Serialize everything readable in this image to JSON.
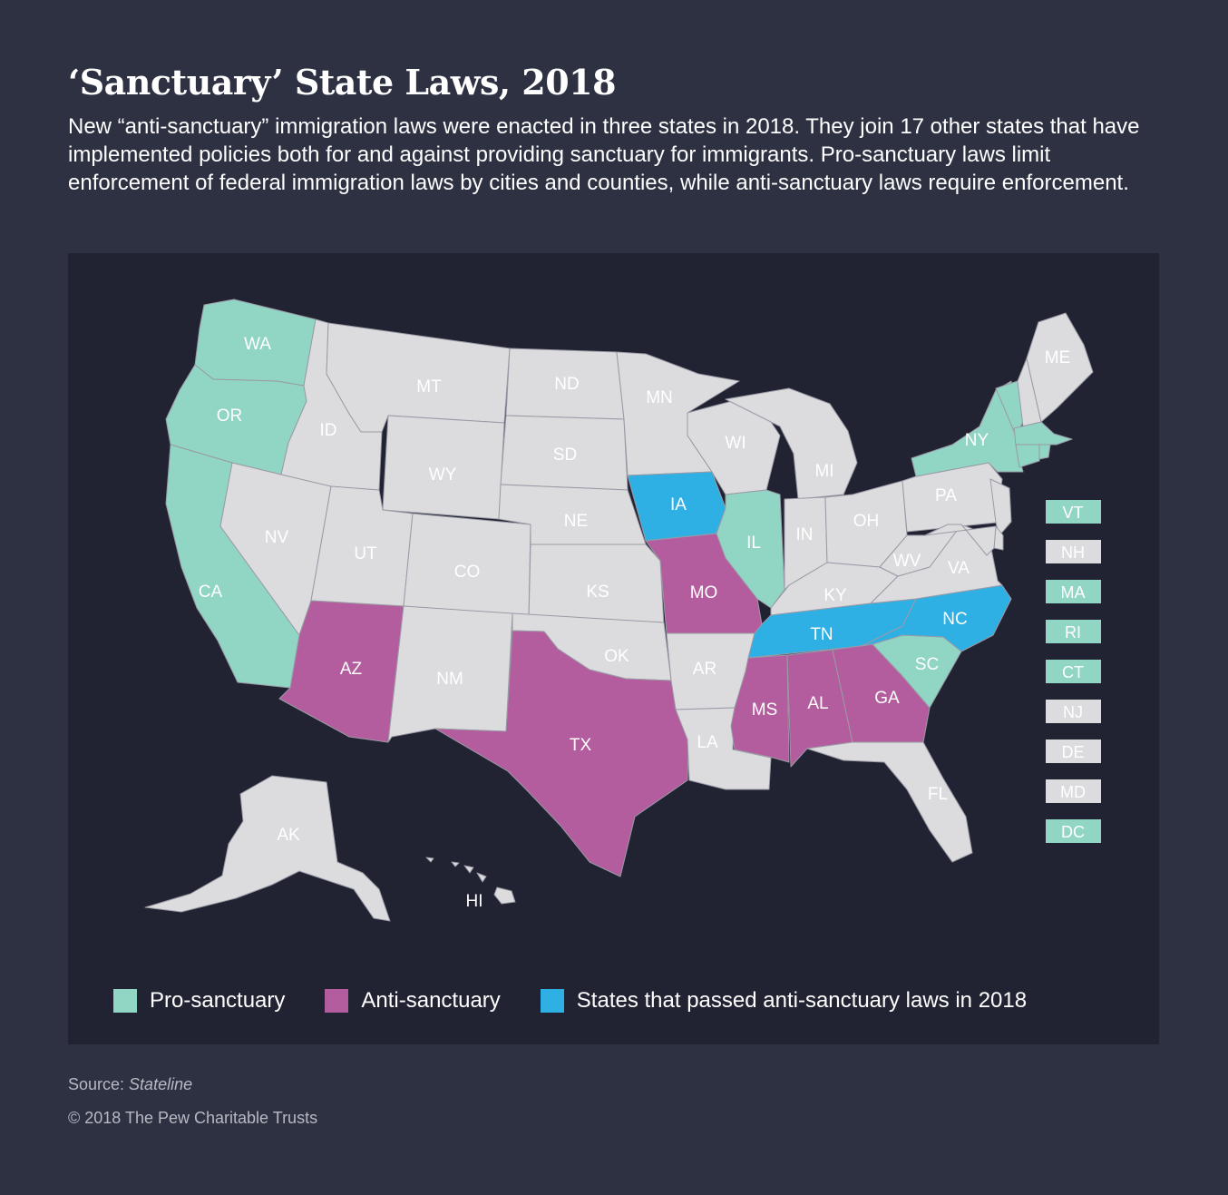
{
  "title": "‘Sanctuary’ State Laws, 2018",
  "subtitle": "New “anti-sanctuary” immigration laws were enacted in three states in 2018. They join 17 other states that have implemented policies both for and against providing sanctuary for immigrants. Pro-sanctuary laws limit enforcement of federal immigration laws by cities and counties, while anti-sanctuary laws require enforcement.",
  "colors": {
    "background": "#2d3142",
    "map_panel": "#212332",
    "pro_sanctuary": "#91d5c4",
    "anti_sanctuary": "#b45d9e",
    "passed_2018": "#2eb0e4",
    "no_policy": "#dcdcdf"
  },
  "states": [
    {
      "abbr": "WA",
      "category": "pro"
    },
    {
      "abbr": "OR",
      "category": "pro"
    },
    {
      "abbr": "CA",
      "category": "pro"
    },
    {
      "abbr": "IL",
      "category": "pro"
    },
    {
      "abbr": "NY",
      "category": "pro"
    },
    {
      "abbr": "SC",
      "category": "pro"
    },
    {
      "abbr": "AZ",
      "category": "anti"
    },
    {
      "abbr": "TX",
      "category": "anti"
    },
    {
      "abbr": "MO",
      "category": "anti"
    },
    {
      "abbr": "MS",
      "category": "anti"
    },
    {
      "abbr": "AL",
      "category": "anti"
    },
    {
      "abbr": "GA",
      "category": "anti"
    },
    {
      "abbr": "IA",
      "category": "passed_2018"
    },
    {
      "abbr": "TN",
      "category": "passed_2018"
    },
    {
      "abbr": "NC",
      "category": "passed_2018"
    },
    {
      "abbr": "ID",
      "category": "none"
    },
    {
      "abbr": "MT",
      "category": "none"
    },
    {
      "abbr": "ND",
      "category": "none"
    },
    {
      "abbr": "MN",
      "category": "none"
    },
    {
      "abbr": "WI",
      "category": "none"
    },
    {
      "abbr": "MI",
      "category": "none"
    },
    {
      "abbr": "SD",
      "category": "none"
    },
    {
      "abbr": "WY",
      "category": "none"
    },
    {
      "abbr": "NE",
      "category": "none"
    },
    {
      "abbr": "NV",
      "category": "none"
    },
    {
      "abbr": "UT",
      "category": "none"
    },
    {
      "abbr": "CO",
      "category": "none"
    },
    {
      "abbr": "KS",
      "category": "none"
    },
    {
      "abbr": "IN",
      "category": "none"
    },
    {
      "abbr": "OH",
      "category": "none"
    },
    {
      "abbr": "PA",
      "category": "none"
    },
    {
      "abbr": "WV",
      "category": "none"
    },
    {
      "abbr": "VA",
      "category": "none"
    },
    {
      "abbr": "KY",
      "category": "none"
    },
    {
      "abbr": "OK",
      "category": "none"
    },
    {
      "abbr": "AR",
      "category": "none"
    },
    {
      "abbr": "NM",
      "category": "none"
    },
    {
      "abbr": "LA",
      "category": "none"
    },
    {
      "abbr": "FL",
      "category": "none"
    },
    {
      "abbr": "ME",
      "category": "none"
    },
    {
      "abbr": "AK",
      "category": "none"
    },
    {
      "abbr": "HI",
      "category": "none"
    }
  ],
  "small_states": [
    {
      "abbr": "VT",
      "category": "pro"
    },
    {
      "abbr": "NH",
      "category": "none"
    },
    {
      "abbr": "MA",
      "category": "pro"
    },
    {
      "abbr": "RI",
      "category": "pro"
    },
    {
      "abbr": "CT",
      "category": "pro"
    },
    {
      "abbr": "NJ",
      "category": "none"
    },
    {
      "abbr": "DE",
      "category": "none"
    },
    {
      "abbr": "MD",
      "category": "none"
    },
    {
      "abbr": "DC",
      "category": "pro"
    }
  ],
  "legend": [
    {
      "key": "pro",
      "label": "Pro-sanctuary",
      "color": "#91d5c4"
    },
    {
      "key": "anti",
      "label": "Anti-sanctuary",
      "color": "#b45d9e"
    },
    {
      "key": "passed_2018",
      "label": "States that passed anti-sanctuary laws in 2018",
      "color": "#2eb0e4"
    }
  ],
  "source": {
    "prefix": "Source: ",
    "name": "Stateline"
  },
  "copyright": "© 2018 The Pew Charitable Trusts"
}
